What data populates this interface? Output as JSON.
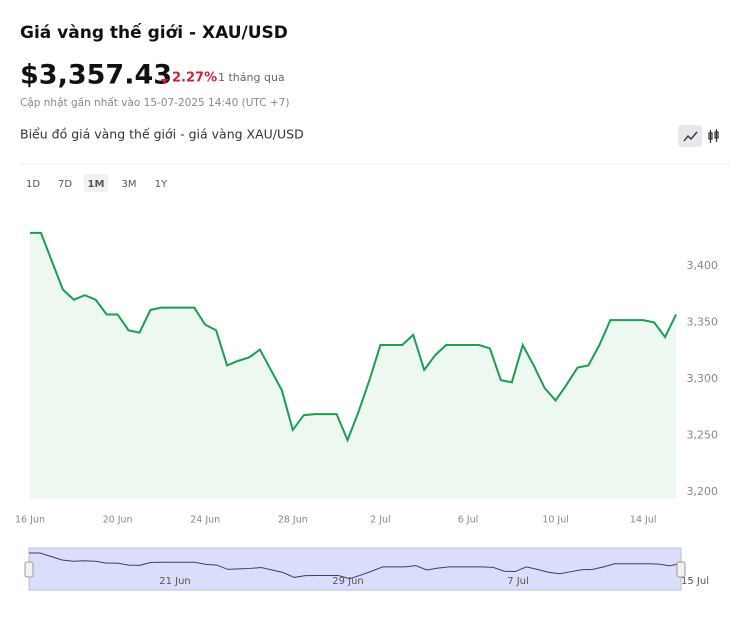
{
  "header": {
    "title": "Giá vàng thế giới - XAU/USD",
    "price": "$3,357.43",
    "change": "2.27%",
    "period": "1 tháng qua",
    "updated": "Cập nhật gần nhất vào 15-07-2025 14:40 (UTC +7)"
  },
  "chart_title": "Biểu đồ giá vàng thế giới - giá vàng XAU/USD",
  "ranges": [
    "1D",
    "7D",
    "1M",
    "3M",
    "1Y"
  ],
  "chart_data": {
    "type": "area",
    "categories": [
      "16 Jun",
      null,
      null,
      null,
      null,
      null,
      null,
      null,
      "20 Jun",
      null,
      null,
      null,
      null,
      null,
      null,
      null,
      "24 Jun",
      null,
      null,
      null,
      null,
      null,
      null,
      null,
      "28 Jun",
      null,
      null,
      null,
      null,
      null,
      null,
      null,
      "2 Jul",
      null,
      null,
      null,
      null,
      null,
      null,
      null,
      "6 Jul",
      null,
      null,
      null,
      null,
      null,
      null,
      null,
      "10 Jul",
      null,
      null,
      null,
      null,
      null,
      null,
      null,
      "14 Jul",
      null,
      null,
      null
    ],
    "series": [
      {
        "name": "XAU/USD",
        "color": "#1b9e52",
        "values": [
          3429,
          3429,
          3404,
          3379,
          3370,
          3374,
          3370,
          3357,
          3357,
          3343,
          3341,
          3361,
          3363,
          3363,
          3363,
          3363,
          3348,
          3343,
          3312,
          3316,
          3319,
          3326,
          3308,
          3290,
          3255,
          3268,
          3269,
          3269,
          3269,
          3246,
          3271,
          3299,
          3330,
          3330,
          3330,
          3339,
          3308,
          3321,
          3330,
          3330,
          3330,
          3330,
          3327,
          3299,
          3297,
          3330,
          3312,
          3292,
          3281,
          3295,
          3310,
          3312,
          3330,
          3352,
          3352,
          3352,
          3352,
          3350,
          3337,
          3357
        ]
      }
    ],
    "ylim": [
      3194,
      3436
    ],
    "yticks": [
      {
        "value": 3200,
        "label": "3,200"
      },
      {
        "value": 3250,
        "label": "3,250"
      },
      {
        "value": 3300,
        "label": "3,300"
      },
      {
        "value": 3350,
        "label": "3,350"
      },
      {
        "value": 3400,
        "label": "3,400"
      }
    ]
  },
  "navigator": {
    "labels": [
      "21 Jun",
      "29 Jun",
      "7 Jul",
      "15 Jul"
    ]
  }
}
